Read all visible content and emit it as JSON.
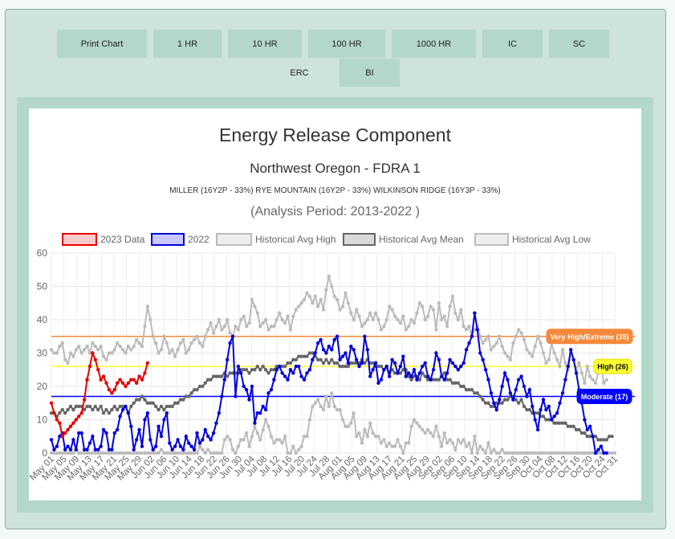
{
  "tabs": [
    {
      "label": "Print Chart"
    },
    {
      "label": "1 HR"
    },
    {
      "label": "10 HR"
    },
    {
      "label": "100 HR"
    },
    {
      "label": "1000 HR"
    },
    {
      "label": "IC"
    },
    {
      "label": "SC"
    },
    {
      "label": "ERC"
    },
    {
      "label": "BI"
    }
  ],
  "active_tab": "ERC",
  "chart_data": {
    "type": "line",
    "title": "Energy Release Component",
    "subtitle": "Northwest Oregon - FDRA 1",
    "stations": "MILLER (16Y2P - 33%) RYE MOUNTAIN (16Y2P - 33%) WILKINSON RIDGE (16Y3P - 33%)",
    "analysis_period": "(Analysis Period: 2013-2022 )",
    "ylim": [
      0,
      60
    ],
    "yticks": [
      0,
      10,
      20,
      30,
      40,
      50,
      60
    ],
    "xticks": [
      "May 01",
      "May 05",
      "May 09",
      "May 13",
      "May 17",
      "May 21",
      "May 25",
      "May 29",
      "Jun 02",
      "Jun 06",
      "Jun 10",
      "Jun 14",
      "Jun 18",
      "Jun 22",
      "Jun 26",
      "Jun 30",
      "Jul 04",
      "Jul 08",
      "Jul 12",
      "Jul 16",
      "Jul 20",
      "Jul 24",
      "Jul 28",
      "Aug 01",
      "Aug 05",
      "Aug 09",
      "Aug 13",
      "Aug 17",
      "Aug 21",
      "Aug 25",
      "Aug 29",
      "Sep 02",
      "Sep 06",
      "Sep 10",
      "Sep 14",
      "Sep 18",
      "Sep 22",
      "Sep 26",
      "Sep 30",
      "Oct 04",
      "Oct 08",
      "Oct 12",
      "Oct 16",
      "Oct 20",
      "Oct 24",
      "Oct 31"
    ],
    "grid": true,
    "legend_position": "top",
    "thresholds": [
      {
        "label": "Very High/Extreme (35)",
        "value": 35,
        "color": "#f5883a",
        "label_color": "#ffffff"
      },
      {
        "label": "High (26)",
        "value": 26,
        "color": "#ffff33",
        "label_color": "#000000"
      },
      {
        "label": "Moderate (17)",
        "value": 17,
        "color": "#0000ff",
        "label_color": "#ffffff"
      }
    ],
    "series": [
      {
        "name": "2023 Data",
        "color": "#e60000",
        "fill": "#fbcaca",
        "values": [
          15,
          12,
          10,
          9,
          5,
          6,
          7,
          8,
          9,
          10,
          11,
          12,
          16,
          22,
          26,
          30,
          28,
          25,
          22,
          23,
          21,
          19,
          18,
          19,
          21,
          22,
          21,
          20,
          21,
          22,
          22,
          21,
          23,
          22,
          24,
          27
        ]
      },
      {
        "name": "2022",
        "color": "#0000dd",
        "fill": "#c8c8ff",
        "values": [
          4,
          1,
          2,
          5,
          6,
          1,
          2,
          1,
          4,
          1,
          6,
          6,
          1,
          1,
          3,
          5,
          1,
          1,
          2,
          7,
          6,
          1,
          1,
          6,
          7,
          11,
          13,
          14,
          12,
          8,
          1,
          4,
          7,
          2,
          10,
          12,
          4,
          1,
          2,
          8,
          5,
          10,
          12,
          3,
          1,
          2,
          4,
          2,
          1,
          5,
          3,
          2,
          1,
          6,
          3,
          4,
          7,
          5,
          4,
          6,
          9,
          12,
          17,
          22,
          28,
          33,
          35,
          17,
          26,
          24,
          20,
          19,
          16,
          20,
          9,
          12,
          12,
          14,
          13,
          18,
          19,
          22,
          25,
          26,
          24,
          23,
          22,
          25,
          24,
          26,
          26,
          23,
          22,
          24,
          25,
          28,
          30,
          33,
          34,
          31,
          30,
          32,
          31,
          34,
          35,
          28,
          29,
          30,
          27,
          32,
          31,
          28,
          26,
          27,
          35,
          31,
          23,
          25,
          27,
          21,
          22,
          25,
          26,
          23,
          28,
          27,
          24,
          26,
          29,
          23,
          24,
          23,
          25,
          22,
          24,
          26,
          27,
          23,
          22,
          25,
          30,
          28,
          23,
          22,
          24,
          28,
          27,
          26,
          25,
          26,
          27,
          31,
          33,
          35,
          42,
          37,
          30,
          28,
          25,
          22,
          18,
          15,
          13,
          16,
          20,
          24,
          22,
          18,
          16,
          19,
          22,
          23,
          20,
          17,
          19,
          14,
          10,
          7,
          13,
          16,
          13,
          14,
          10,
          11,
          12,
          15,
          18,
          22,
          26,
          31,
          28,
          24,
          19,
          15,
          10,
          7,
          8,
          5,
          0,
          1,
          2,
          0,
          0
        ]
      },
      {
        "name": "Historical Avg High",
        "color": "#bbbbbb",
        "fill": "#eeeeee",
        "values": [
          31,
          30,
          30,
          32,
          33,
          28,
          27,
          30,
          29,
          31,
          32,
          30,
          31,
          32,
          30,
          33,
          32,
          31,
          32,
          29,
          28,
          30,
          30,
          31,
          33,
          32,
          31,
          30,
          32,
          31,
          32,
          34,
          33,
          32,
          38,
          44,
          40,
          35,
          33,
          30,
          31,
          35,
          33,
          30,
          31,
          29,
          31,
          33,
          34,
          30,
          31,
          33,
          34,
          35,
          33,
          32,
          35,
          37,
          39,
          36,
          38,
          40,
          37,
          38,
          40,
          36,
          35,
          38,
          37,
          40,
          41,
          38,
          39,
          46,
          44,
          42,
          38,
          39,
          40,
          37,
          38,
          38,
          40,
          42,
          40,
          39,
          41,
          37,
          41,
          43,
          44,
          45,
          46,
          48,
          47,
          45,
          47,
          44,
          46,
          43,
          49,
          53,
          50,
          47,
          46,
          43,
          44,
          48,
          45,
          42,
          40,
          43,
          41,
          38,
          39,
          40,
          42,
          40,
          42,
          40,
          37,
          38,
          40,
          44,
          43,
          41,
          40,
          39,
          41,
          37,
          38,
          40,
          39,
          42,
          45,
          44,
          40,
          41,
          44,
          43,
          37,
          45,
          40,
          41,
          38,
          44,
          47,
          42,
          40,
          43,
          38,
          37,
          38,
          35,
          37,
          38,
          35,
          33,
          34,
          35,
          31,
          32,
          33,
          35,
          32,
          30,
          29,
          28,
          33,
          35,
          37,
          36,
          34,
          31,
          30,
          29,
          32,
          35,
          33,
          30,
          27,
          28,
          33,
          30,
          28,
          26,
          31,
          27,
          25,
          30,
          28,
          25,
          27,
          24,
          21,
          26,
          23,
          22,
          21,
          24,
          26,
          21,
          22
        ]
      },
      {
        "name": "Historical Avg Mean",
        "color": "#666666",
        "fill": "#d9d9d9",
        "values": [
          12,
          12,
          11,
          12,
          13,
          12,
          13,
          14,
          13,
          14,
          14,
          14,
          13,
          14,
          14,
          13,
          14,
          13,
          14,
          12,
          13,
          12,
          13,
          14,
          13,
          14,
          14,
          14,
          12,
          14,
          15,
          16,
          16,
          17,
          16,
          15,
          15,
          15,
          14,
          13,
          14,
          13,
          14,
          14,
          14,
          15,
          15,
          16,
          16,
          17,
          17,
          18,
          19,
          19,
          20,
          20,
          21,
          22,
          22,
          23,
          23,
          23,
          23,
          24,
          23,
          24,
          24,
          24,
          24,
          25,
          25,
          25,
          24,
          25,
          25,
          26,
          25,
          26,
          25,
          24,
          25,
          25,
          26,
          26,
          26,
          26,
          27,
          27,
          28,
          28,
          29,
          29,
          29,
          29,
          30,
          30,
          29,
          28,
          28,
          27,
          28,
          27,
          28,
          27,
          27,
          26,
          26,
          26,
          26,
          27,
          27,
          27,
          27,
          28,
          27,
          28,
          27,
          27,
          26,
          26,
          26,
          25,
          26,
          24,
          25,
          24,
          24,
          24,
          25,
          25,
          23,
          22,
          23,
          23,
          22,
          24,
          23,
          22,
          22,
          22,
          22,
          22,
          23,
          24,
          22,
          22,
          21,
          21,
          21,
          20,
          20,
          19,
          19,
          19,
          18,
          18,
          17,
          16,
          15,
          15,
          14,
          14,
          15,
          15,
          15,
          16,
          16,
          17,
          17,
          16,
          15,
          16,
          14,
          13,
          13,
          12,
          12,
          12,
          11,
          11,
          10,
          10,
          10,
          9,
          9,
          9,
          9,
          9,
          8,
          8,
          8,
          7,
          7,
          6,
          6,
          5,
          5,
          5,
          5,
          4,
          4,
          4,
          4,
          5,
          5
        ]
      },
      {
        "name": "Historical Avg Low",
        "color": "#bbbbbb",
        "fill": "#eeeeee",
        "values": [
          0,
          0,
          0,
          0,
          0,
          0,
          0,
          0,
          0,
          1,
          0,
          0,
          0,
          0,
          0,
          0,
          0,
          0,
          0,
          0,
          0,
          0,
          0,
          0,
          0,
          0,
          0,
          0,
          0,
          0,
          0,
          0,
          0,
          0,
          0,
          0,
          0,
          0,
          0,
          0,
          1,
          0,
          0,
          0,
          0,
          0,
          0,
          0,
          0,
          0,
          0,
          0,
          0,
          0,
          2,
          1,
          0,
          1,
          0,
          0,
          0,
          0,
          0,
          4,
          5,
          4,
          1,
          0,
          2,
          4,
          4,
          6,
          2,
          5,
          8,
          6,
          4,
          7,
          10,
          8,
          5,
          3,
          4,
          4,
          3,
          5,
          0,
          0,
          2,
          0,
          1,
          2,
          5,
          5,
          10,
          14,
          15,
          16,
          14,
          13,
          17,
          14,
          18,
          14,
          13,
          13,
          10,
          8,
          8,
          9,
          12,
          5,
          6,
          3,
          7,
          5,
          9,
          6,
          5,
          5,
          3,
          4,
          2,
          3,
          2,
          2,
          4,
          2,
          0,
          3,
          3,
          8,
          10,
          9,
          8,
          7,
          6,
          7,
          6,
          5,
          8,
          5,
          2,
          6,
          3,
          4,
          3,
          1,
          4,
          3,
          4,
          2,
          3,
          0,
          5,
          0,
          2,
          1,
          0,
          3,
          0,
          1,
          0,
          0,
          1,
          0,
          0,
          0,
          0,
          0,
          0,
          0,
          0,
          0,
          0,
          0,
          0,
          0,
          0,
          0,
          0,
          0,
          0,
          0,
          0,
          0,
          0,
          0,
          0,
          0,
          0,
          0,
          0,
          0,
          0,
          0,
          0,
          0,
          0,
          0,
          0,
          0,
          0,
          0,
          0,
          0
        ]
      }
    ]
  }
}
